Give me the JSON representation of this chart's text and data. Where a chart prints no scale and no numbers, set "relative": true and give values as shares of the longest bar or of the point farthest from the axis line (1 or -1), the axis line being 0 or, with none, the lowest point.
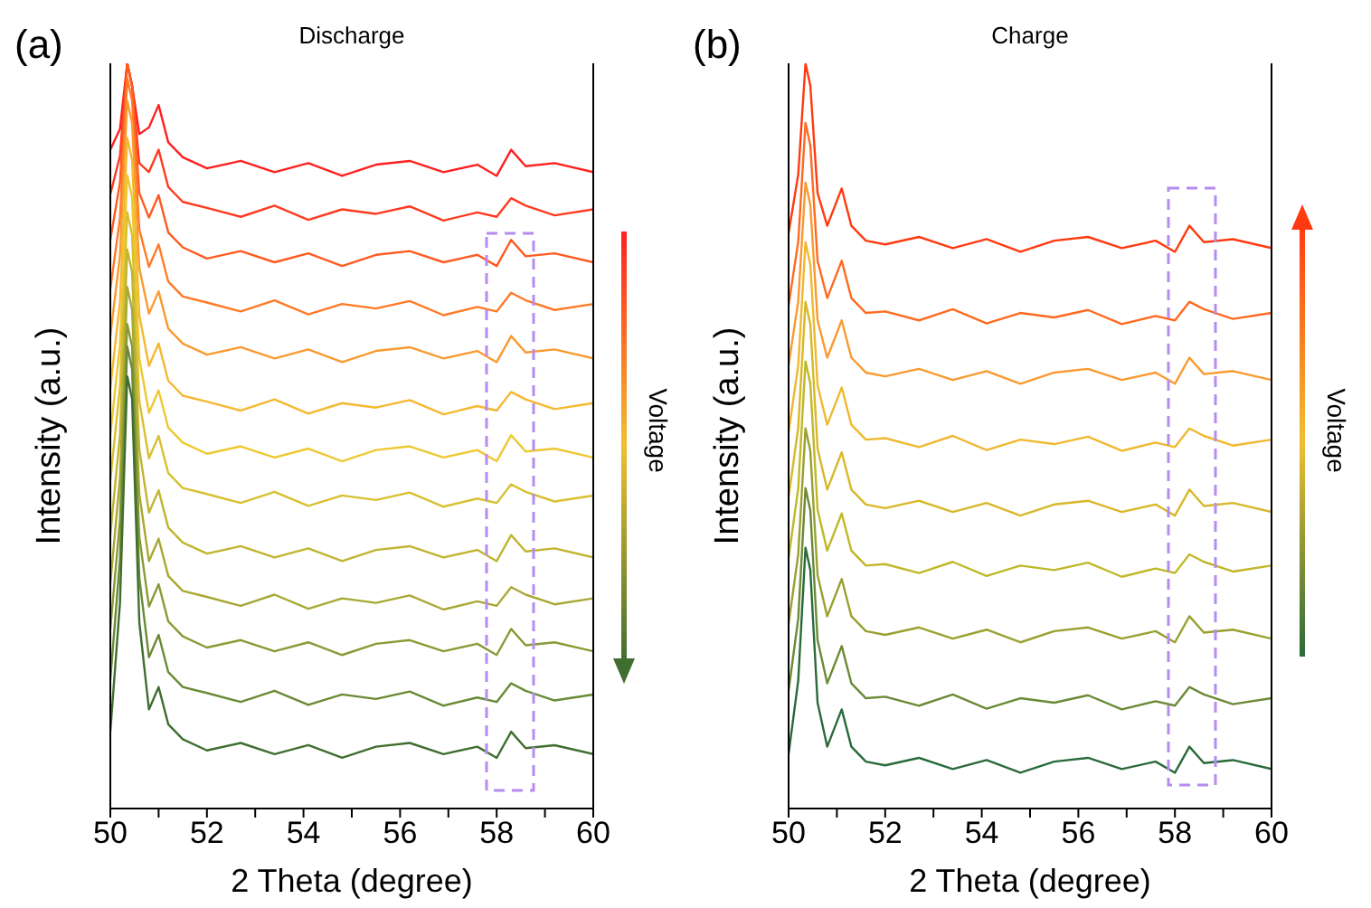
{
  "chart_data": [
    {
      "type": "line",
      "relative": true,
      "title": "Discharge",
      "xlabel": "2 Theta (degree)",
      "ylabel": "Intensity (a.u.)",
      "annotations": [
        "(a)",
        "Voltage"
      ],
      "marker": "none",
      "line_style": "solid",
      "tick_labels": "x",
      "xlim": [
        50,
        60
      ],
      "xticks": [
        50,
        {
          "value": 51,
          "label": null
        },
        52,
        {
          "value": 53,
          "label": null
        },
        54,
        {
          "value": 55,
          "label": null
        },
        56,
        {
          "value": 57,
          "label": null
        },
        58,
        {
          "value": 59,
          "label": null
        },
        60
      ],
      "x": [
        50,
        50.2,
        50.35,
        50.45,
        50.6,
        50.8,
        51,
        51.2,
        51.5,
        52,
        52.7,
        53.4,
        54.1,
        54.8,
        55.5,
        56.2,
        56.9,
        57.6,
        58,
        58.3,
        58.6,
        59.2,
        60
      ],
      "series": [
        {
          "color": "#ff2020",
          "values": [
            0.884,
            0.912,
            1,
            0.97,
            0.905,
            0.914,
            0.944,
            0.894,
            0.874,
            0.859,
            0.869,
            0.854,
            0.866,
            0.849,
            0.864,
            0.869,
            0.854,
            0.864,
            0.849,
            0.884,
            0.862,
            0.866,
            0.854
          ]
        },
        {
          "color": "#ff3a20",
          "values": [
            0.824,
            0.876,
            1,
            0.97,
            0.866,
            0.854,
            0.884,
            0.834,
            0.814,
            0.806,
            0.794,
            0.809,
            0.79,
            0.804,
            0.798,
            0.808,
            0.789,
            0.8,
            0.794,
            0.819,
            0.809,
            0.796,
            0.804
          ]
        },
        {
          "color": "#ff5a20",
          "values": [
            0.763,
            0.84,
            1,
            0.97,
            0.826,
            0.793,
            0.823,
            0.773,
            0.753,
            0.738,
            0.748,
            0.733,
            0.745,
            0.728,
            0.743,
            0.748,
            0.733,
            0.743,
            0.728,
            0.763,
            0.741,
            0.745,
            0.733
          ]
        },
        {
          "color": "#ff7a25",
          "values": [
            0.697,
            0.792,
            0.98,
            0.95,
            0.777,
            0.727,
            0.757,
            0.707,
            0.687,
            0.679,
            0.667,
            0.682,
            0.663,
            0.677,
            0.671,
            0.681,
            0.662,
            0.673,
            0.667,
            0.692,
            0.682,
            0.669,
            0.677
          ]
        },
        {
          "color": "#f99a30",
          "values": [
            0.634,
            0.742,
            0.95,
            0.92,
            0.725,
            0.664,
            0.694,
            0.644,
            0.624,
            0.609,
            0.619,
            0.604,
            0.616,
            0.599,
            0.614,
            0.619,
            0.604,
            0.614,
            0.599,
            0.634,
            0.612,
            0.616,
            0.604
          ]
        },
        {
          "color": "#f5b830",
          "values": [
            0.564,
            0.68,
            0.9,
            0.87,
            0.662,
            0.594,
            0.624,
            0.574,
            0.554,
            0.546,
            0.534,
            0.549,
            0.53,
            0.544,
            0.538,
            0.548,
            0.529,
            0.54,
            0.534,
            0.559,
            0.549,
            0.536,
            0.544
          ]
        },
        {
          "color": "#eec830",
          "values": [
            0.501,
            0.623,
            0.85,
            0.82,
            0.604,
            0.531,
            0.561,
            0.511,
            0.491,
            0.476,
            0.486,
            0.471,
            0.483,
            0.466,
            0.481,
            0.486,
            0.471,
            0.481,
            0.466,
            0.501,
            0.479,
            0.483,
            0.471
          ]
        },
        {
          "color": "#d8c030",
          "values": [
            0.44,
            0.566,
            0.8,
            0.77,
            0.547,
            0.47,
            0.5,
            0.45,
            0.43,
            0.422,
            0.41,
            0.425,
            0.406,
            0.42,
            0.414,
            0.424,
            0.405,
            0.416,
            0.41,
            0.435,
            0.425,
            0.412,
            0.42
          ]
        },
        {
          "color": "#c0b530",
          "values": [
            0.367,
            0.502,
            0.75,
            0.72,
            0.482,
            0.397,
            0.427,
            0.377,
            0.357,
            0.342,
            0.352,
            0.337,
            0.349,
            0.332,
            0.347,
            0.352,
            0.337,
            0.347,
            0.332,
            0.367,
            0.345,
            0.349,
            0.337
          ]
        },
        {
          "color": "#a8a835",
          "values": [
            0.302,
            0.443,
            0.7,
            0.67,
            0.422,
            0.332,
            0.362,
            0.312,
            0.292,
            0.284,
            0.272,
            0.287,
            0.268,
            0.282,
            0.276,
            0.286,
            0.267,
            0.278,
            0.272,
            0.297,
            0.287,
            0.274,
            0.282
          ]
        },
        {
          "color": "#8a9a35",
          "values": [
            0.241,
            0.387,
            0.65,
            0.62,
            0.365,
            0.271,
            0.301,
            0.251,
            0.231,
            0.216,
            0.226,
            0.211,
            0.223,
            0.206,
            0.221,
            0.226,
            0.211,
            0.221,
            0.206,
            0.241,
            0.219,
            0.223,
            0.211
          ]
        },
        {
          "color": "#6a8a35",
          "values": [
            0.173,
            0.334,
            0.62,
            0.59,
            0.31,
            0.203,
            0.233,
            0.183,
            0.163,
            0.155,
            0.143,
            0.158,
            0.139,
            0.153,
            0.147,
            0.157,
            0.138,
            0.149,
            0.143,
            0.168,
            0.158,
            0.145,
            0.153
          ]
        },
        {
          "color": "#3f6e30",
          "values": [
            0.103,
            0.276,
            0.58,
            0.55,
            0.25,
            0.133,
            0.163,
            0.113,
            0.093,
            0.078,
            0.088,
            0.073,
            0.085,
            0.068,
            0.083,
            0.088,
            0.073,
            0.083,
            0.068,
            0.103,
            0.081,
            0.085,
            0.073
          ]
        }
      ]
    },
    {
      "type": "line",
      "relative": true,
      "title": "Charge",
      "xlabel": "2 Theta (degree)",
      "ylabel": "Intensity (a.u.)",
      "annotations": [
        "(b)",
        "Voltage"
      ],
      "marker": "none",
      "line_style": "solid",
      "tick_labels": "x",
      "xlim": [
        50,
        60
      ],
      "xticks": [
        50,
        {
          "value": 51,
          "label": null
        },
        52,
        {
          "value": 53,
          "label": null
        },
        54,
        {
          "value": 55,
          "label": null
        },
        56,
        {
          "value": 57,
          "label": null
        },
        58,
        {
          "value": 59,
          "label": null
        },
        60
      ],
      "x": [
        50,
        50.2,
        50.35,
        50.45,
        50.6,
        50.8,
        51.1,
        51.3,
        51.6,
        52,
        52.7,
        53.4,
        54.1,
        54.8,
        55.5,
        56.2,
        56.9,
        57.6,
        58,
        58.3,
        58.6,
        59.2,
        60
      ],
      "series": [
        {
          "color": "#ff3a10",
          "values": [
            0.772,
            0.851,
            1,
            0.97,
            0.826,
            0.782,
            0.832,
            0.782,
            0.762,
            0.757,
            0.767,
            0.752,
            0.764,
            0.747,
            0.762,
            0.767,
            0.752,
            0.762,
            0.747,
            0.782,
            0.76,
            0.764,
            0.752
          ]
        },
        {
          "color": "#ff6a20",
          "values": [
            0.675,
            0.761,
            0.92,
            0.89,
            0.735,
            0.685,
            0.735,
            0.685,
            0.665,
            0.667,
            0.655,
            0.67,
            0.651,
            0.665,
            0.659,
            0.669,
            0.65,
            0.661,
            0.655,
            0.68,
            0.67,
            0.657,
            0.665
          ]
        },
        {
          "color": "#f99a30",
          "values": [
            0.595,
            0.681,
            0.84,
            0.81,
            0.655,
            0.605,
            0.655,
            0.605,
            0.585,
            0.58,
            0.59,
            0.575,
            0.587,
            0.57,
            0.585,
            0.59,
            0.575,
            0.585,
            0.57,
            0.605,
            0.583,
            0.587,
            0.575
          ]
        },
        {
          "color": "#f0b830",
          "values": [
            0.505,
            0.595,
            0.76,
            0.73,
            0.568,
            0.515,
            0.565,
            0.515,
            0.495,
            0.497,
            0.485,
            0.5,
            0.481,
            0.495,
            0.489,
            0.499,
            0.48,
            0.491,
            0.485,
            0.51,
            0.5,
            0.487,
            0.495
          ]
        },
        {
          "color": "#d8b828",
          "values": [
            0.418,
            0.511,
            0.68,
            0.65,
            0.483,
            0.428,
            0.478,
            0.428,
            0.408,
            0.403,
            0.413,
            0.398,
            0.41,
            0.393,
            0.408,
            0.413,
            0.398,
            0.408,
            0.393,
            0.428,
            0.406,
            0.41,
            0.398
          ]
        },
        {
          "color": "#c0b828",
          "values": [
            0.336,
            0.43,
            0.6,
            0.57,
            0.401,
            0.346,
            0.396,
            0.346,
            0.326,
            0.328,
            0.316,
            0.331,
            0.312,
            0.326,
            0.32,
            0.33,
            0.311,
            0.322,
            0.316,
            0.341,
            0.331,
            0.318,
            0.326
          ]
        },
        {
          "color": "#9aa030",
          "values": [
            0.248,
            0.341,
            0.51,
            0.48,
            0.313,
            0.258,
            0.308,
            0.258,
            0.238,
            0.233,
            0.243,
            0.228,
            0.24,
            0.223,
            0.238,
            0.243,
            0.228,
            0.238,
            0.223,
            0.258,
            0.236,
            0.24,
            0.228
          ]
        },
        {
          "color": "#6a8a35",
          "values": [
            0.158,
            0.255,
            0.43,
            0.4,
            0.226,
            0.168,
            0.218,
            0.168,
            0.148,
            0.15,
            0.138,
            0.153,
            0.134,
            0.148,
            0.142,
            0.152,
            0.133,
            0.144,
            0.138,
            0.163,
            0.153,
            0.14,
            0.148
          ]
        },
        {
          "color": "#2a6a3a",
          "values": [
            0.073,
            0.172,
            0.35,
            0.32,
            0.142,
            0.083,
            0.133,
            0.083,
            0.063,
            0.058,
            0.068,
            0.053,
            0.065,
            0.048,
            0.063,
            0.068,
            0.053,
            0.063,
            0.048,
            0.083,
            0.061,
            0.065,
            0.053
          ]
        }
      ]
    }
  ]
}
